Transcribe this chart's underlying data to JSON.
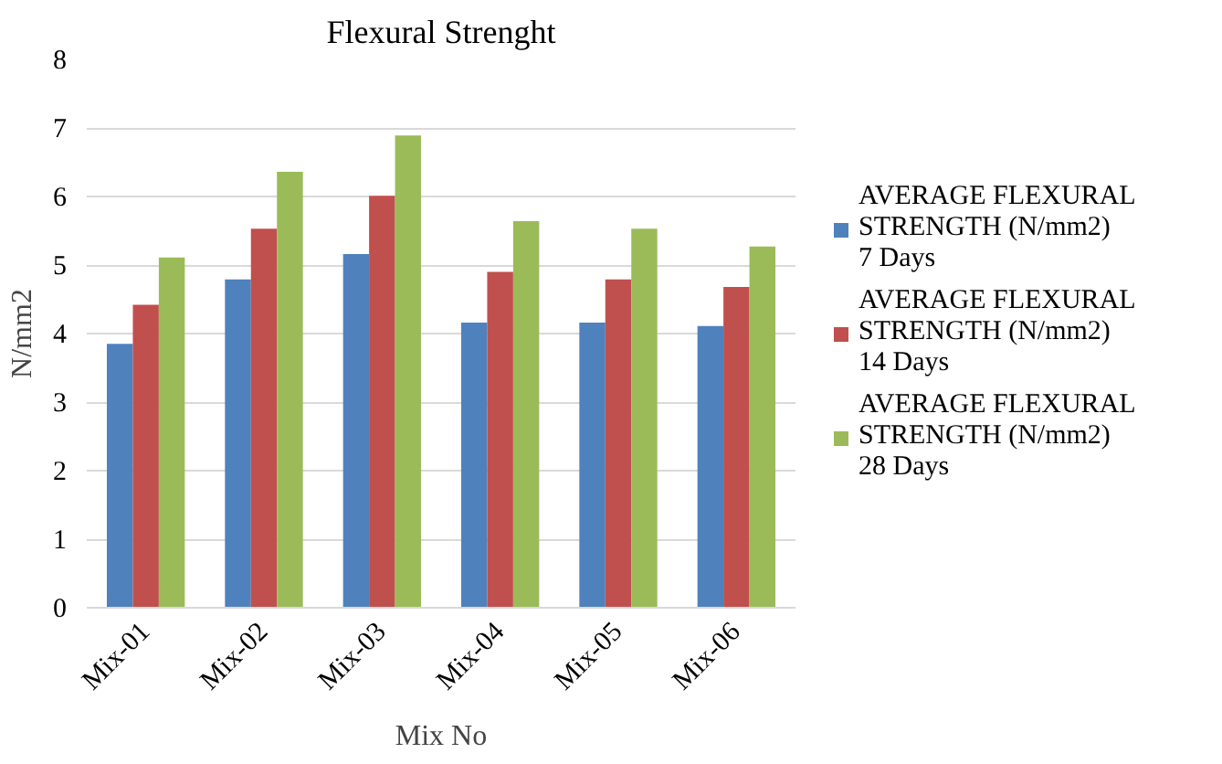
{
  "chart_data": {
    "type": "bar",
    "title": "Flexural Strenght",
    "xlabel": "Mix No",
    "ylabel": "N/mm2",
    "categories": [
      "Mix-01",
      "Mix-02",
      "Mix-03",
      "Mix-04",
      "Mix-05",
      "Mix-06"
    ],
    "series": [
      {
        "name": "AVERAGE FLEXURAL STRENGTH (N/mm2) 7 Days",
        "color": "#4f81bd",
        "values": [
          3.85,
          4.79,
          5.16,
          4.16,
          4.16,
          4.11
        ]
      },
      {
        "name": "AVERAGE FLEXURAL STRENGTH (N/mm2) 14 Days",
        "color": "#c0504d",
        "values": [
          4.42,
          5.53,
          6.01,
          4.9,
          4.79,
          4.68
        ]
      },
      {
        "name": "AVERAGE FLEXURAL STRENGTH (N/mm2) 28 Days",
        "color": "#9bbb59",
        "values": [
          5.11,
          6.36,
          6.89,
          5.64,
          5.53,
          5.27
        ]
      }
    ],
    "ylim": [
      0,
      8
    ],
    "yticks": [
      0,
      1,
      2,
      3,
      4,
      5,
      6,
      7,
      8
    ],
    "grid": "y",
    "legend": "right"
  }
}
